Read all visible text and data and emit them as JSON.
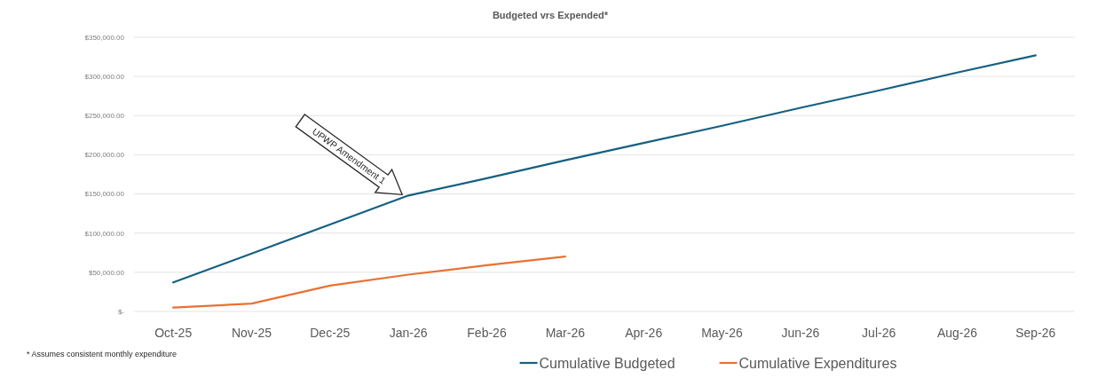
{
  "chart_data": {
    "type": "line",
    "title": "Budgeted vrs Expended*",
    "categories": [
      "Oct-25",
      "Nov-25",
      "Dec-25",
      "Jan-26",
      "Feb-26",
      "Mar-26",
      "Apr-26",
      "May-26",
      "Jun-26",
      "Jul-26",
      "Aug-26",
      "Sep-26"
    ],
    "series": [
      {
        "name": "Cumulative Budgeted",
        "color": "#156082",
        "values": [
          37000,
          74000,
          111000,
          148000,
          170000,
          193000,
          215000,
          237000,
          260000,
          282000,
          305000,
          327000
        ]
      },
      {
        "name": "Cumulative Expenditures",
        "color": "#e97132",
        "values": [
          5000,
          10000,
          33000,
          47000,
          59000,
          70000,
          null,
          null,
          null,
          null,
          null,
          null
        ]
      }
    ],
    "ylim": [
      0,
      350000
    ],
    "yticks": [
      {
        "value": 0,
        "label": "$-"
      },
      {
        "value": 50000,
        "label": "$50,000.00"
      },
      {
        "value": 100000,
        "label": "$100,000.00"
      },
      {
        "value": 150000,
        "label": "$150,000.00"
      },
      {
        "value": 200000,
        "label": "$200,000.00"
      },
      {
        "value": 250000,
        "label": "$250,000.00"
      },
      {
        "value": 300000,
        "label": "$300,000.00"
      },
      {
        "value": 350000,
        "label": "$350,000.00"
      }
    ],
    "grid": "y",
    "legend": "bottom",
    "annotations": [
      {
        "text": "UPWP Amendment 1",
        "x": "Jan-26",
        "y": 148000
      },
      "* Assumes consistent monthly expenditure"
    ]
  }
}
